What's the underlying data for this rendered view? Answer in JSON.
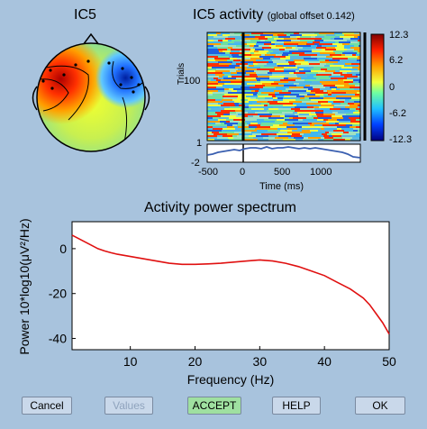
{
  "topomap": {
    "title": "IC5"
  },
  "erpimage": {
    "title": "IC5 activity",
    "subtitle": "(global offset 0.142)",
    "ylabel": "Trials",
    "ytick_100": "100",
    "trace_ticks": [
      "1",
      "-2"
    ],
    "xticks": [
      "-500",
      "0",
      "500",
      "1000"
    ],
    "xlabel": "Time (ms)",
    "colorbar_ticks": [
      "12.3",
      "6.2",
      "0",
      "-6.2",
      "-12.3"
    ]
  },
  "spectrum": {
    "title": "Activity power spectrum",
    "ylabel": "Power 10*log10(μV²/Hz)",
    "xlabel": "Frequency (Hz)"
  },
  "chart_data": {
    "type": "line",
    "title": "Activity power spectrum",
    "xlabel": "Frequency (Hz)",
    "ylabel": "Power 10*log10(μV²/Hz)",
    "xlim": [
      1,
      50
    ],
    "ylim": [
      -45,
      12
    ],
    "xticks": [
      10,
      20,
      30,
      40,
      50
    ],
    "yticks": [
      0,
      -20,
      -40
    ],
    "series": [
      {
        "color": "#e01010",
        "x": [
          1,
          2,
          3,
          4,
          5,
          6,
          7,
          8,
          10,
          12,
          14,
          16,
          18,
          20,
          22,
          24,
          26,
          28,
          30,
          32,
          34,
          36,
          38,
          40,
          42,
          44,
          46,
          47,
          48,
          49,
          50
        ],
        "y": [
          6,
          4.5,
          3,
          1.5,
          0,
          -1,
          -1.8,
          -2.5,
          -3.5,
          -4.5,
          -5.5,
          -6.5,
          -7,
          -7,
          -6.8,
          -6.5,
          -6,
          -5.5,
          -5,
          -5.5,
          -6.5,
          -8,
          -10,
          -12,
          -15,
          -18,
          -22,
          -25,
          -29,
          -33,
          -38
        ]
      }
    ]
  },
  "buttons": {
    "cancel": "Cancel",
    "values": "Values",
    "accept": "ACCEPT",
    "help": "HELP",
    "ok": "OK"
  },
  "colors": {
    "background": "#a8c3dd",
    "line": "#e01010",
    "trace": "#3a5fb0"
  }
}
